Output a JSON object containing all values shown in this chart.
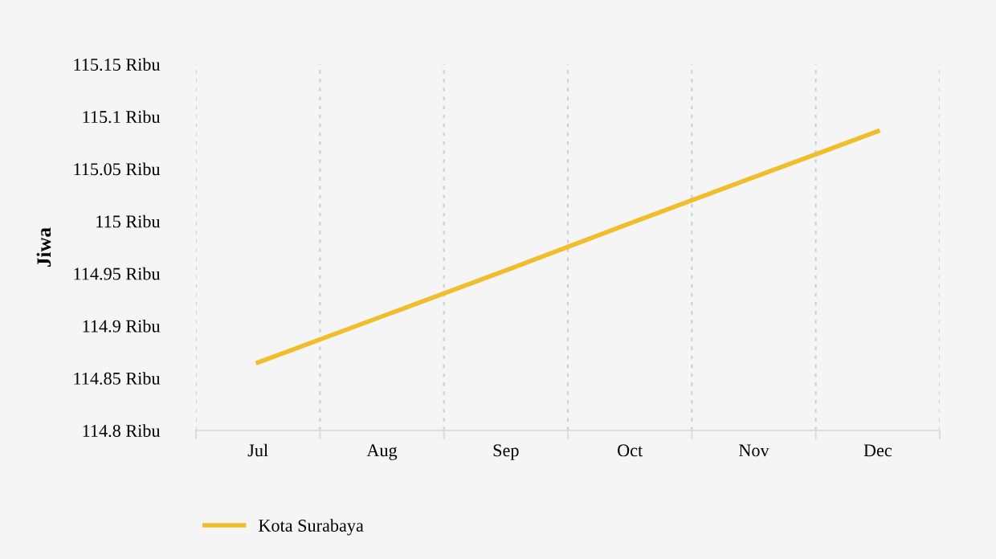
{
  "chart_data": {
    "type": "line",
    "ylabel": "Jiwa",
    "categories": [
      "Jul",
      "Aug",
      "Sep",
      "Oct",
      "Nov",
      "Dec"
    ],
    "series": [
      {
        "name": "Kota Surabaya",
        "color": "#f0be2c",
        "values": [
          114.865,
          114.909,
          114.953,
          114.998,
          115.042,
          115.086
        ]
      }
    ],
    "ylim": [
      114.8,
      115.15
    ],
    "yticks": [
      {
        "value": 114.8,
        "label": "114.8 Ribu"
      },
      {
        "value": 114.85,
        "label": "114.85 Ribu"
      },
      {
        "value": 114.9,
        "label": "114.9 Ribu"
      },
      {
        "value": 114.95,
        "label": "114.95 Ribu"
      },
      {
        "value": 115,
        "label": "115 Ribu"
      },
      {
        "value": 115.05,
        "label": "115.05 Ribu"
      },
      {
        "value": 115.1,
        "label": "115.1 Ribu"
      },
      {
        "value": 115.15,
        "label": "115.15 Ribu"
      }
    ],
    "grid": "x",
    "legend": "bottom left",
    "marker": "none",
    "line_style": "solid"
  }
}
